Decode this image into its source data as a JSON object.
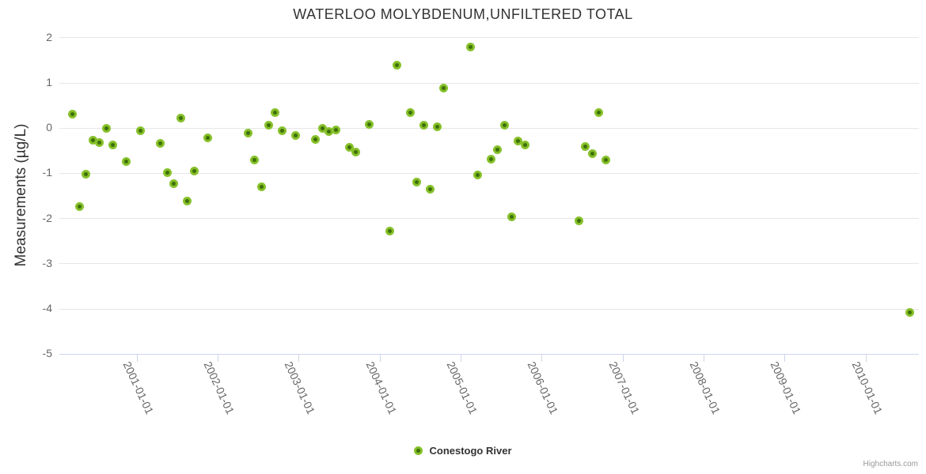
{
  "chart_data": {
    "type": "scatter",
    "title": "WATERLOO MOLYBDENUM,UNFILTERED TOTAL",
    "ylabel": "Measurements (µg/L)",
    "xlabel": "",
    "ylim": [
      -5,
      2
    ],
    "yticks": [
      2,
      1,
      0,
      -1,
      -2,
      -3,
      -4,
      -5
    ],
    "xticks": [
      "2001-01-01",
      "2002-01-01",
      "2003-01-01",
      "2004-01-01",
      "2005-01-01",
      "2006-01-01",
      "2007-01-01",
      "2008-01-01",
      "2009-01-01",
      "2010-01-01"
    ],
    "grid": "horizontal",
    "legend_position": "bottom-center",
    "series": [
      {
        "name": "Conestogo River",
        "color": "#86c12a",
        "marker_core_color": "#3d6e09",
        "points": [
          [
            "2000-03",
            0.31
          ],
          [
            "2000-04",
            -1.75
          ],
          [
            "2000-05",
            -1.02
          ],
          [
            "2000-06",
            -0.27
          ],
          [
            "2000-07",
            -0.32
          ],
          [
            "2000-08",
            -0.01
          ],
          [
            "2000-09",
            -0.38
          ],
          [
            "2000-11",
            -0.75
          ],
          [
            "2001-01",
            -0.06
          ],
          [
            "2001-04",
            -0.35
          ],
          [
            "2001-05",
            -1.0
          ],
          [
            "2001-06",
            -1.23
          ],
          [
            "2001-07",
            0.22
          ],
          [
            "2001-08",
            -1.63
          ],
          [
            "2001-09",
            -0.96
          ],
          [
            "2001-11",
            -0.23
          ],
          [
            "2002-05",
            -0.12
          ],
          [
            "2002-06",
            -0.72
          ],
          [
            "2002-07",
            -1.3
          ],
          [
            "2002-08",
            0.06
          ],
          [
            "2002-09",
            0.33
          ],
          [
            "2002-10",
            -0.06
          ],
          [
            "2002-12",
            -0.17
          ],
          [
            "2003-03",
            -0.26
          ],
          [
            "2003-04",
            -0.02
          ],
          [
            "2003-05",
            -0.09
          ],
          [
            "2003-06",
            -0.04
          ],
          [
            "2003-08",
            -0.43
          ],
          [
            "2003-09",
            -0.53
          ],
          [
            "2003-11",
            0.08
          ],
          [
            "2004-02",
            -2.28
          ],
          [
            "2004-03",
            1.38
          ],
          [
            "2004-05",
            0.34
          ],
          [
            "2004-06",
            -1.21
          ],
          [
            "2004-07",
            0.05
          ],
          [
            "2004-08",
            -1.36
          ],
          [
            "2004-09",
            0.02
          ],
          [
            "2004-10",
            0.87
          ],
          [
            "2005-02",
            1.79
          ],
          [
            "2005-03",
            -1.05
          ],
          [
            "2005-05",
            -0.69
          ],
          [
            "2005-06",
            -0.49
          ],
          [
            "2005-07",
            0.05
          ],
          [
            "2005-08",
            -1.97
          ],
          [
            "2005-09",
            -0.3
          ],
          [
            "2005-10",
            -0.38
          ],
          [
            "2006-06",
            -2.05
          ],
          [
            "2006-07",
            -0.42
          ],
          [
            "2006-08",
            -0.57
          ],
          [
            "2006-09",
            0.33
          ],
          [
            "2006-10",
            -0.72
          ],
          [
            "2010-07",
            -4.08
          ]
        ]
      }
    ]
  },
  "legend": {
    "label": "Conestogo River"
  },
  "credits": {
    "label": "Highcharts.com"
  },
  "colors": {
    "grid": "#e6e6e6",
    "axis": "#ccd6eb",
    "tick_label": "#666666",
    "title": "#333333",
    "credits": "#999999",
    "series": "#86c12a",
    "series_core": "#3d6e09"
  }
}
